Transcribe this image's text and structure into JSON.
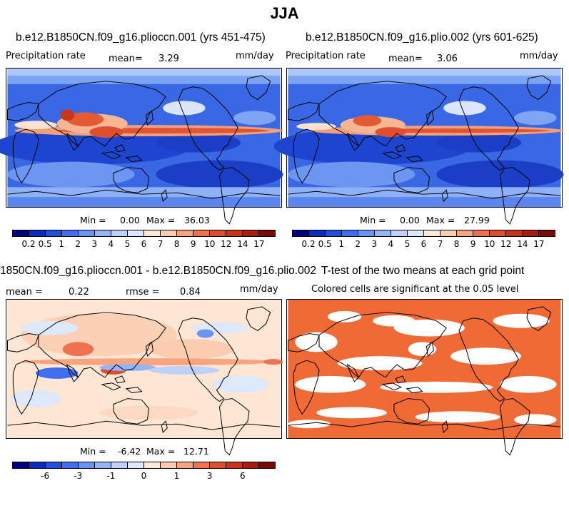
{
  "title": "JJA",
  "panels": [
    {
      "title": "b.e12.B1850CN.f09_g16.plioccn.001 (yrs 451-475)",
      "variable": "Precipitation rate",
      "mean_label": "mean=",
      "mean_value": "3.29",
      "units": "mm/day",
      "min_label": "Min =",
      "min_value": "0.00",
      "max_label": "Max =",
      "max_value": "36.03"
    },
    {
      "title": "b.e12.B1850CN.f09_g16.plio.002 (yrs 601-625)",
      "variable": "Precipitation rate",
      "mean_label": "mean=",
      "mean_value": "3.06",
      "units": "mm/day",
      "min_label": "Min =",
      "min_value": "0.00",
      "max_label": "Max =",
      "max_value": "27.99"
    },
    {
      "title": "1850CN.f09_g16.plioccn.001 - b.e12.B1850CN.f09_g16.plio.002",
      "mean_label": "mean =",
      "mean_value": "0.22",
      "rmse_label": "rmse =",
      "rmse_value": "0.84",
      "units": "mm/day",
      "min_label": "Min =",
      "min_value": "-6.42",
      "max_label": "Max =",
      "max_value": "12.71"
    },
    {
      "title": "T-test of the two means at each grid point",
      "subtitle": "Colored cells are significant at the 0.05 level"
    }
  ],
  "colorbars": {
    "precip": {
      "colors": [
        "#000080",
        "#0a2bbf",
        "#1e4fdd",
        "#3f6fef",
        "#6b93f5",
        "#96b5f8",
        "#bdd2fb",
        "#dde8fd",
        "#fde9d8",
        "#fbcdb0",
        "#f7a47f",
        "#ef7150",
        "#e04f2d",
        "#c93518",
        "#a51d0c",
        "#7a0a05"
      ],
      "labels": [
        "0.2",
        "0.5",
        "1",
        "2",
        "3",
        "4",
        "5",
        "6",
        "7",
        "8",
        "9",
        "10",
        "12",
        "14",
        "17"
      ]
    },
    "diff": {
      "colors": [
        "#000080",
        "#0a2bbf",
        "#1e4fdd",
        "#3f6fef",
        "#6b93f5",
        "#96b5f8",
        "#bdd2fb",
        "#dde8fd",
        "#fde9d8",
        "#fbcdb0",
        "#f7a47f",
        "#ef7150",
        "#e04f2d",
        "#c93518",
        "#a51d0c",
        "#7a0a05"
      ],
      "labels": [
        "-6",
        "-3",
        "-1",
        "0",
        "1",
        "3",
        "6"
      ]
    }
  },
  "colors": {
    "significant": "#f06a35",
    "ocean_base_precip": "#2a5fe0",
    "diff_base": "#fde6d4"
  }
}
